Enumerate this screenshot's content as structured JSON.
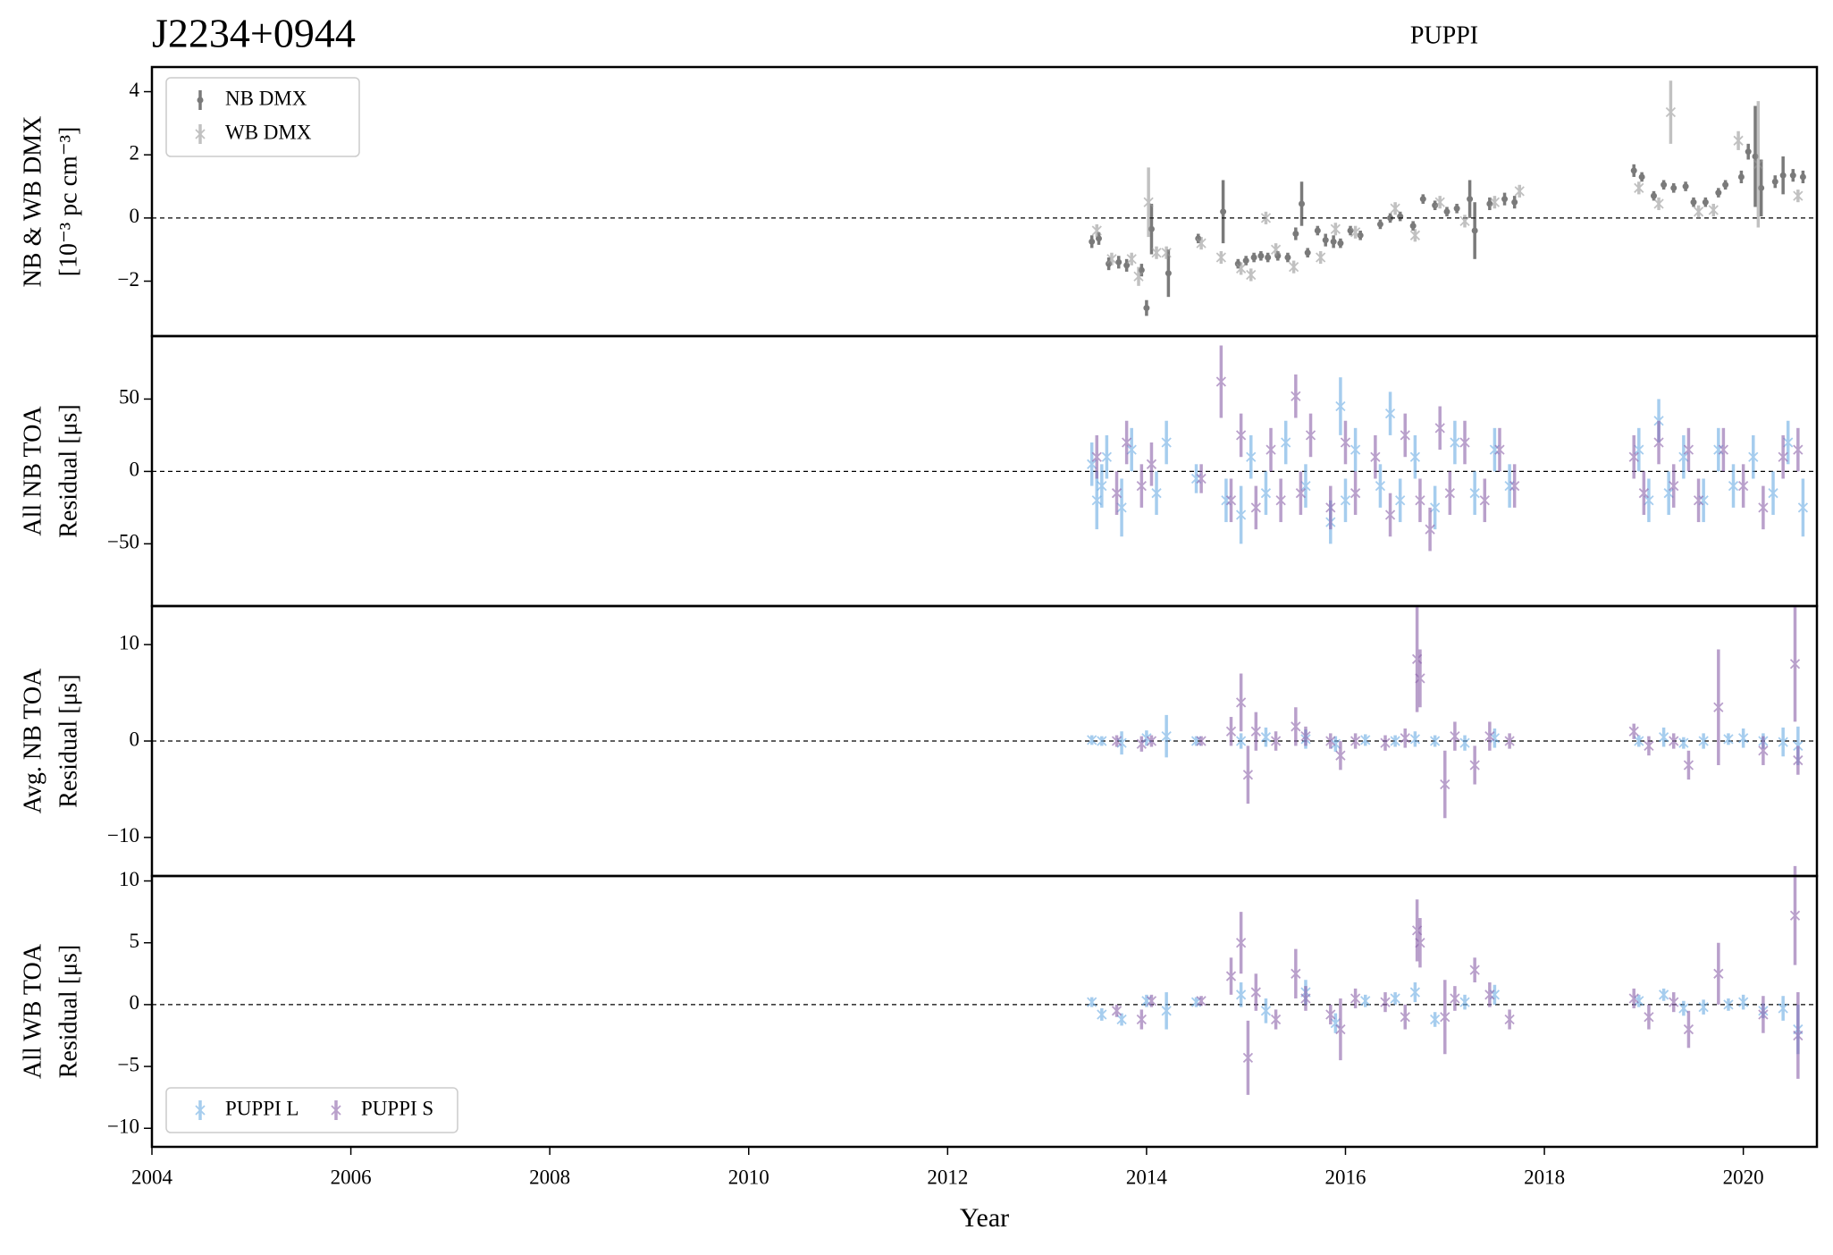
{
  "chart_data": [
    {
      "type": "errorbar",
      "title": "J2234+0944",
      "subtitle": "PUPPI",
      "ylabel": [
        "NB & WB DMX",
        "[10⁻³ pc cm⁻³]"
      ],
      "xlim": [
        2004,
        2020.74
      ],
      "ylim": [
        -3.74,
        4.78
      ],
      "yticks": [
        {
          "value": -2,
          "label": "−2"
        },
        0,
        2,
        4
      ],
      "hline": 0,
      "legend": "upper left",
      "legend_ncol": 1,
      "series": [
        {
          "name": "NB DMX",
          "color": "#222222",
          "marker": "o",
          "x": [
            2013.45,
            2013.52,
            2013.62,
            2013.72,
            2013.8,
            2013.95,
            2014.0,
            2014.05,
            2014.22,
            2014.52,
            2014.77,
            2014.92,
            2015.0,
            2015.08,
            2015.15,
            2015.22,
            2015.32,
            2015.42,
            2015.5,
            2015.56,
            2015.62,
            2015.72,
            2015.8,
            2015.88,
            2015.95,
            2016.05,
            2016.15,
            2016.35,
            2016.45,
            2016.55,
            2016.68,
            2016.78,
            2016.9,
            2017.02,
            2017.12,
            2017.25,
            2017.3,
            2017.45,
            2017.6,
            2017.7,
            2018.9,
            2018.98,
            2019.1,
            2019.2,
            2019.3,
            2019.42,
            2019.5,
            2019.62,
            2019.75,
            2019.82,
            2019.98,
            2020.05,
            2020.12,
            2020.18,
            2020.32,
            2020.4,
            2020.5,
            2020.6
          ],
          "values": [
            -0.75,
            -0.65,
            -1.45,
            -1.4,
            -1.5,
            -1.65,
            -2.85,
            -0.35,
            -1.75,
            -0.65,
            0.2,
            -1.45,
            -1.35,
            -1.25,
            -1.2,
            -1.25,
            -1.2,
            -1.25,
            -0.5,
            0.45,
            -1.1,
            -0.4,
            -0.7,
            -0.75,
            -0.8,
            -0.4,
            -0.55,
            -0.2,
            0.0,
            0.05,
            -0.25,
            0.6,
            0.4,
            0.2,
            0.3,
            0.6,
            -0.4,
            0.45,
            0.6,
            0.5,
            1.5,
            1.3,
            0.7,
            1.05,
            0.95,
            1.0,
            0.5,
            0.5,
            0.8,
            1.05,
            1.3,
            2.1,
            1.95,
            0.95,
            1.15,
            1.35,
            1.35,
            1.3
          ],
          "errors": [
            0.2,
            0.2,
            0.2,
            0.2,
            0.2,
            0.2,
            0.25,
            0.8,
            0.75,
            0.15,
            1.0,
            0.15,
            0.15,
            0.15,
            0.15,
            0.15,
            0.15,
            0.15,
            0.2,
            0.7,
            0.15,
            0.15,
            0.2,
            0.2,
            0.15,
            0.15,
            0.15,
            0.15,
            0.15,
            0.15,
            0.15,
            0.15,
            0.15,
            0.15,
            0.15,
            0.6,
            0.9,
            0.2,
            0.2,
            0.2,
            0.2,
            0.15,
            0.15,
            0.15,
            0.15,
            0.15,
            0.15,
            0.15,
            0.15,
            0.15,
            0.2,
            0.25,
            1.6,
            0.9,
            0.2,
            0.6,
            0.2,
            0.2
          ]
        },
        {
          "name": "WB DMX",
          "color": "#999999",
          "marker": "x",
          "x": [
            2013.5,
            2013.65,
            2013.85,
            2013.92,
            2014.02,
            2014.1,
            2014.2,
            2014.55,
            2014.75,
            2014.95,
            2015.05,
            2015.2,
            2015.3,
            2015.48,
            2015.75,
            2015.9,
            2016.1,
            2016.5,
            2016.7,
            2016.95,
            2017.2,
            2017.5,
            2017.75,
            2018.95,
            2019.15,
            2019.27,
            2019.55,
            2019.7,
            2019.95,
            2020.15,
            2020.55
          ],
          "values": [
            -0.4,
            -1.3,
            -1.3,
            -1.85,
            0.5,
            -1.1,
            -1.1,
            -0.8,
            -1.25,
            -1.6,
            -1.8,
            0.0,
            -1.0,
            -1.55,
            -1.25,
            -0.35,
            -0.45,
            0.3,
            -0.55,
            0.5,
            -0.1,
            0.5,
            0.85,
            0.95,
            0.45,
            3.35,
            0.2,
            0.25,
            2.45,
            1.7,
            0.7
          ],
          "errors": [
            0.2,
            0.2,
            0.2,
            0.3,
            1.1,
            0.2,
            0.2,
            0.2,
            0.2,
            0.2,
            0.2,
            0.2,
            0.2,
            0.2,
            0.2,
            0.2,
            0.2,
            0.2,
            0.2,
            0.2,
            0.2,
            0.2,
            0.2,
            0.2,
            0.2,
            1.0,
            0.2,
            0.2,
            0.3,
            2.0,
            0.2
          ]
        }
      ]
    },
    {
      "type": "errorbar",
      "ylabel": [
        "All NB TOA",
        "Residual [μs]"
      ],
      "xlim": [
        2004,
        2020.74
      ],
      "ylim": [
        -93,
        93.5
      ],
      "yticks": [
        {
          "value": -50,
          "label": "−50"
        },
        0,
        50
      ],
      "hline": 0,
      "series": [
        {
          "color": "#6cace4",
          "marker": "x",
          "x": [
            2013.45,
            2013.5,
            2013.55,
            2013.6,
            2013.75,
            2013.85,
            2014.1,
            2014.2,
            2014.5,
            2014.8,
            2014.95,
            2015.05,
            2015.2,
            2015.4,
            2015.6,
            2015.85,
            2015.95,
            2016.0,
            2016.1,
            2016.35,
            2016.45,
            2016.55,
            2016.7,
            2016.9,
            2017.1,
            2017.3,
            2017.5,
            2017.65,
            2018.95,
            2019.05,
            2019.15,
            2019.25,
            2019.4,
            2019.6,
            2019.75,
            2019.9,
            2020.1,
            2020.3,
            2020.45,
            2020.6
          ],
          "values": [
            5,
            -20,
            -10,
            10,
            -25,
            15,
            -15,
            20,
            -5,
            -20,
            -30,
            10,
            -15,
            20,
            -10,
            -35,
            45,
            -20,
            15,
            -10,
            40,
            -20,
            10,
            -25,
            20,
            -15,
            15,
            -10,
            15,
            -20,
            35,
            -15,
            10,
            -20,
            15,
            -10,
            10,
            -15,
            20,
            -25
          ],
          "errors": [
            15,
            20,
            15,
            15,
            20,
            15,
            15,
            15,
            10,
            15,
            20,
            15,
            15,
            15,
            15,
            15,
            20,
            15,
            15,
            15,
            15,
            15,
            15,
            15,
            15,
            15,
            15,
            15,
            15,
            15,
            15,
            15,
            15,
            15,
            15,
            15,
            15,
            15,
            15,
            20
          ]
        },
        {
          "color": "#8c62aa",
          "marker": "x",
          "x": [
            2013.5,
            2013.7,
            2013.8,
            2013.95,
            2014.05,
            2014.55,
            2014.75,
            2014.85,
            2014.95,
            2015.1,
            2015.25,
            2015.35,
            2015.5,
            2015.55,
            2015.65,
            2015.85,
            2016.0,
            2016.1,
            2016.3,
            2016.45,
            2016.6,
            2016.75,
            2016.85,
            2016.95,
            2017.05,
            2017.2,
            2017.4,
            2017.55,
            2017.7,
            2018.9,
            2019.0,
            2019.15,
            2019.3,
            2019.45,
            2019.55,
            2019.8,
            2020.0,
            2020.2,
            2020.4,
            2020.55
          ],
          "values": [
            10,
            -15,
            20,
            -10,
            5,
            -5,
            62,
            -20,
            25,
            -25,
            15,
            -20,
            52,
            -15,
            25,
            -25,
            20,
            -15,
            10,
            -30,
            25,
            -20,
            -40,
            30,
            -15,
            20,
            -20,
            15,
            -10,
            10,
            -15,
            20,
            -10,
            15,
            -20,
            15,
            -10,
            -25,
            10,
            15
          ],
          "errors": [
            15,
            15,
            15,
            15,
            15,
            10,
            25,
            15,
            15,
            15,
            15,
            15,
            15,
            15,
            15,
            15,
            15,
            15,
            15,
            15,
            15,
            15,
            15,
            15,
            15,
            15,
            15,
            15,
            15,
            15,
            15,
            15,
            15,
            15,
            15,
            15,
            15,
            15,
            15,
            15
          ]
        }
      ]
    },
    {
      "type": "errorbar",
      "ylabel": [
        "Avg. NB TOA",
        "Residual [μs]"
      ],
      "xlim": [
        2004,
        2020.74
      ],
      "ylim": [
        -14,
        14
      ],
      "yticks": [
        {
          "value": -10,
          "label": "−10"
        },
        0,
        10
      ],
      "hline": 0,
      "series": [
        {
          "color": "#6cace4",
          "marker": "x",
          "x": [
            2013.45,
            2013.55,
            2013.75,
            2014.0,
            2014.2,
            2014.5,
            2014.95,
            2015.2,
            2015.6,
            2015.9,
            2016.2,
            2016.5,
            2016.7,
            2016.9,
            2017.2,
            2017.5,
            2018.95,
            2019.2,
            2019.4,
            2019.6,
            2019.85,
            2020.0,
            2020.2,
            2020.4,
            2020.55
          ],
          "values": [
            0.1,
            0.0,
            -0.2,
            0.3,
            0.5,
            0.0,
            0.0,
            0.4,
            0.2,
            -0.3,
            0.1,
            0.0,
            0.2,
            0.0,
            -0.2,
            0.3,
            0.0,
            0.4,
            -0.2,
            0.0,
            0.2,
            0.3,
            0.0,
            -0.1,
            -0.5
          ],
          "errors": [
            0.5,
            0.5,
            1.2,
            0.8,
            2.2,
            0.5,
            0.8,
            1.0,
            1.0,
            0.8,
            0.6,
            0.6,
            0.8,
            0.6,
            0.8,
            1.0,
            0.6,
            1.0,
            0.6,
            0.8,
            0.6,
            1.0,
            0.8,
            1.5,
            2.0
          ]
        },
        {
          "color": "#8c62aa",
          "marker": "x",
          "x": [
            2013.7,
            2013.95,
            2014.05,
            2014.55,
            2014.85,
            2014.95,
            2015.02,
            2015.1,
            2015.3,
            2015.5,
            2015.6,
            2015.85,
            2015.95,
            2016.1,
            2016.4,
            2016.6,
            2016.72,
            2016.75,
            2017.0,
            2017.1,
            2017.3,
            2017.45,
            2017.65,
            2018.9,
            2019.05,
            2019.3,
            2019.45,
            2019.75,
            2020.2,
            2020.52,
            2020.55
          ],
          "values": [
            0.0,
            -0.3,
            0.0,
            0.0,
            1.0,
            4.0,
            -3.5,
            1.0,
            0.0,
            1.5,
            0.5,
            0.0,
            -1.5,
            0.0,
            -0.2,
            0.3,
            8.5,
            6.5,
            -4.5,
            0.5,
            -2.5,
            0.5,
            0.0,
            1.0,
            -0.5,
            0.0,
            -2.5,
            3.5,
            -1.0,
            8.0,
            -2.0
          ],
          "errors": [
            0.6,
            0.8,
            0.6,
            0.5,
            1.5,
            3.0,
            3.0,
            2.0,
            1.0,
            2.0,
            1.0,
            0.8,
            1.5,
            0.8,
            0.8,
            1.0,
            5.5,
            3.0,
            3.5,
            1.5,
            2.0,
            1.5,
            0.8,
            0.8,
            1.0,
            0.8,
            1.5,
            6.0,
            1.5,
            6.0,
            1.5
          ]
        }
      ]
    },
    {
      "type": "errorbar",
      "ylabel": [
        "All WB TOA",
        "Residual [μs]"
      ],
      "xlabel": "Year",
      "xlim": [
        2004,
        2020.74
      ],
      "ylim": [
        -11.5,
        10.4
      ],
      "xticks": [
        2004,
        2006,
        2008,
        2010,
        2012,
        2014,
        2016,
        2018,
        2020
      ],
      "yticks": [
        {
          "value": -10,
          "label": "−10"
        },
        {
          "value": -5,
          "label": "−5"
        },
        0,
        5,
        10
      ],
      "hline": 0,
      "legend": "lower left",
      "legend_ncol": 2,
      "series": [
        {
          "name": "PUPPI L",
          "color": "#6cace4",
          "marker": "x",
          "x": [
            2013.45,
            2013.55,
            2013.75,
            2014.0,
            2014.2,
            2014.5,
            2014.95,
            2015.2,
            2015.6,
            2015.9,
            2016.2,
            2016.5,
            2016.7,
            2016.9,
            2017.2,
            2017.5,
            2018.95,
            2019.2,
            2019.4,
            2019.6,
            2019.85,
            2020.0,
            2020.2,
            2020.4,
            2020.55
          ],
          "values": [
            0.2,
            -0.8,
            -1.2,
            0.3,
            -0.5,
            0.2,
            0.8,
            -0.5,
            1.0,
            -1.5,
            0.3,
            0.5,
            1.0,
            -1.2,
            0.2,
            0.8,
            0.3,
            0.8,
            -0.3,
            -0.2,
            0.0,
            0.2,
            -0.5,
            -0.3,
            -2.0
          ],
          "errors": [
            0.4,
            0.5,
            0.5,
            0.5,
            1.5,
            0.4,
            1.0,
            1.0,
            1.0,
            0.8,
            0.5,
            0.5,
            0.8,
            0.6,
            0.6,
            0.8,
            0.5,
            0.5,
            0.6,
            0.6,
            0.5,
            0.6,
            0.6,
            1.0,
            2.0
          ]
        },
        {
          "name": "PUPPI S",
          "color": "#8c62aa",
          "marker": "x",
          "x": [
            2013.7,
            2013.95,
            2014.05,
            2014.55,
            2014.85,
            2014.95,
            2015.02,
            2015.1,
            2015.3,
            2015.5,
            2015.6,
            2015.85,
            2015.95,
            2016.1,
            2016.4,
            2016.6,
            2016.72,
            2016.75,
            2017.0,
            2017.1,
            2017.3,
            2017.45,
            2017.65,
            2018.9,
            2019.05,
            2019.3,
            2019.45,
            2019.75,
            2020.2,
            2020.52,
            2020.55
          ],
          "values": [
            -0.5,
            -1.2,
            0.3,
            0.3,
            2.3,
            5.0,
            -4.3,
            1.0,
            -1.2,
            2.5,
            0.5,
            -0.8,
            -2.0,
            0.5,
            0.2,
            -1.0,
            6.0,
            5.0,
            -1.0,
            0.5,
            2.8,
            0.8,
            -1.2,
            0.5,
            -1.0,
            0.2,
            -2.0,
            2.5,
            -0.8,
            7.2,
            -2.5
          ],
          "errors": [
            0.5,
            0.8,
            0.5,
            0.4,
            1.5,
            2.5,
            3.0,
            1.5,
            0.8,
            2.0,
            1.0,
            0.8,
            2.5,
            0.8,
            0.8,
            1.0,
            2.5,
            2.0,
            3.0,
            1.0,
            1.0,
            1.0,
            0.8,
            0.8,
            1.0,
            0.8,
            1.5,
            2.5,
            1.5,
            4.0,
            3.5
          ]
        }
      ]
    }
  ]
}
